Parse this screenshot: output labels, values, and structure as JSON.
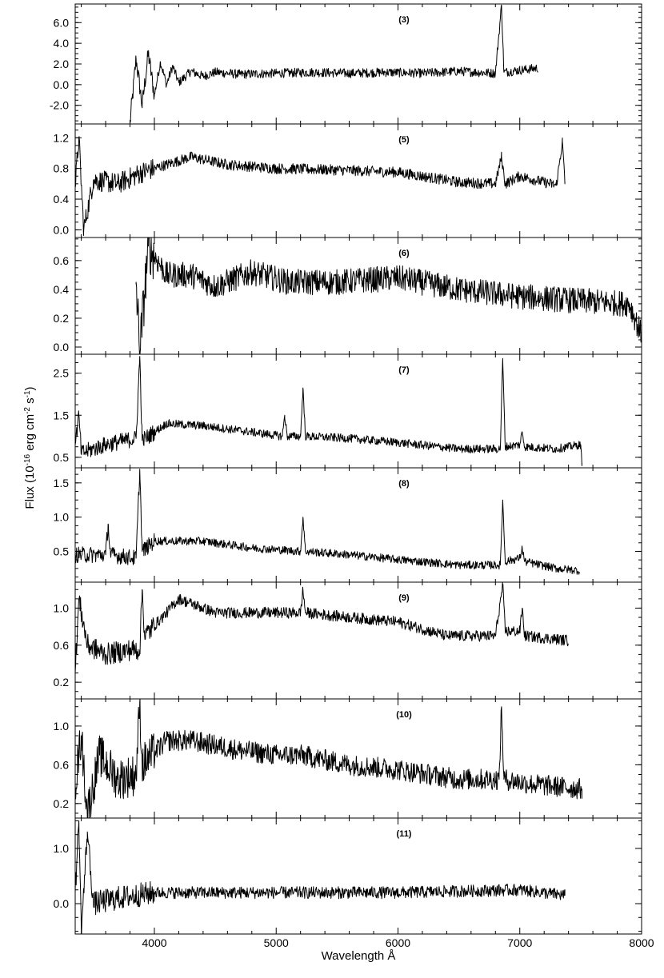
{
  "chart_data": {
    "type": "line",
    "xlabel": "Wavelength Å",
    "ylabel": "Flux (10^-16 erg cm^-2 s^-1)",
    "ylabel_parts": {
      "prefix": "Flux (10",
      "exp1": "-16",
      "mid": " erg cm",
      "exp2": "-2",
      "mid2": " s",
      "exp3": "-1",
      "suffix": ")"
    },
    "xlim": [
      3350,
      8000
    ],
    "x_ticks": [
      4000,
      5000,
      6000,
      7000,
      8000
    ],
    "x_tick_labels": [
      "4000",
      "5000",
      "6000",
      "7000",
      "8000"
    ],
    "grid": false,
    "panels": [
      {
        "label": "(3)",
        "ylim": [
          -3.8,
          7.8
        ],
        "y_ticks": [
          -2.0,
          0.0,
          2.0,
          4.0,
          6.0
        ],
        "y_tick_labels": [
          "-2.0",
          "0.0",
          "2.0",
          "4.0",
          "6.0"
        ],
        "range": [
          3800,
          7150
        ],
        "points": [
          [
            3800,
            -3.7
          ],
          [
            3850,
            2.5
          ],
          [
            3900,
            -2.0
          ],
          [
            3950,
            3.0
          ],
          [
            4000,
            -1.0
          ],
          [
            4050,
            2.2
          ],
          [
            4100,
            0.0
          ],
          [
            4150,
            1.8
          ],
          [
            4200,
            0.2
          ],
          [
            4300,
            1.3
          ],
          [
            4400,
            0.8
          ],
          [
            4500,
            1.2
          ],
          [
            4700,
            1.0
          ],
          [
            5000,
            1.1
          ],
          [
            5300,
            1.2
          ],
          [
            5600,
            1.1
          ],
          [
            5900,
            1.2
          ],
          [
            6200,
            1.1
          ],
          [
            6500,
            1.3
          ],
          [
            6800,
            1.1
          ],
          [
            6850,
            7.7
          ],
          [
            6870,
            1.2
          ],
          [
            7000,
            1.4
          ],
          [
            7150,
            1.6
          ]
        ],
        "noise": 0.45
      },
      {
        "label": "(5)",
        "ylim": [
          -0.1,
          1.38
        ],
        "y_ticks": [
          0.0,
          0.4,
          0.8,
          1.2
        ],
        "y_tick_labels": [
          "0.0",
          "0.4",
          "0.8",
          "1.2"
        ],
        "range": [
          3350,
          7370
        ],
        "points": [
          [
            3350,
            0.55
          ],
          [
            3380,
            1.2
          ],
          [
            3420,
            0.0
          ],
          [
            3500,
            0.65
          ],
          [
            3700,
            0.6
          ],
          [
            3900,
            0.75
          ],
          [
            4100,
            0.85
          ],
          [
            4300,
            0.95
          ],
          [
            4600,
            0.85
          ],
          [
            5000,
            0.8
          ],
          [
            5500,
            0.78
          ],
          [
            6000,
            0.75
          ],
          [
            6500,
            0.62
          ],
          [
            6800,
            0.6
          ],
          [
            6850,
            0.95
          ],
          [
            6880,
            0.6
          ],
          [
            7000,
            0.7
          ],
          [
            7300,
            0.58
          ],
          [
            7350,
            1.15
          ],
          [
            7370,
            0.6
          ]
        ],
        "noise": 0.07
      },
      {
        "label": "(6)",
        "ylim": [
          -0.05,
          0.76
        ],
        "y_ticks": [
          0.0,
          0.2,
          0.4,
          0.6
        ],
        "y_tick_labels": [
          "0.0",
          "0.2",
          "0.4",
          "0.6"
        ],
        "range": [
          3850,
          8000
        ],
        "points": [
          [
            3850,
            0.45
          ],
          [
            3880,
            -0.04
          ],
          [
            3950,
            0.7
          ],
          [
            4100,
            0.5
          ],
          [
            4300,
            0.5
          ],
          [
            4500,
            0.42
          ],
          [
            4800,
            0.52
          ],
          [
            5100,
            0.45
          ],
          [
            5500,
            0.45
          ],
          [
            6000,
            0.48
          ],
          [
            6500,
            0.4
          ],
          [
            7000,
            0.35
          ],
          [
            7500,
            0.32
          ],
          [
            7900,
            0.3
          ],
          [
            8000,
            0.08
          ]
        ],
        "noise": 0.09
      },
      {
        "label": "(7)",
        "ylim": [
          0.25,
          2.95
        ],
        "y_ticks": [
          0.5,
          1.5,
          2.5
        ],
        "y_tick_labels": [
          "0.5",
          "1.5",
          "2.5"
        ],
        "range": [
          3350,
          7510
        ],
        "points": [
          [
            3350,
            0.8
          ],
          [
            3380,
            1.5
          ],
          [
            3400,
            0.6
          ],
          [
            3600,
            0.8
          ],
          [
            3850,
            0.95
          ],
          [
            3880,
            2.9
          ],
          [
            3900,
            0.9
          ],
          [
            4100,
            1.3
          ],
          [
            4400,
            1.25
          ],
          [
            4800,
            1.1
          ],
          [
            5050,
            1.0
          ],
          [
            5070,
            1.5
          ],
          [
            5090,
            1.0
          ],
          [
            5200,
            1.0
          ],
          [
            5220,
            2.15
          ],
          [
            5240,
            1.0
          ],
          [
            5600,
            0.95
          ],
          [
            6000,
            0.85
          ],
          [
            6500,
            0.7
          ],
          [
            6840,
            0.7
          ],
          [
            6860,
            2.85
          ],
          [
            6880,
            0.75
          ],
          [
            7000,
            0.8
          ],
          [
            7020,
            1.1
          ],
          [
            7040,
            0.75
          ],
          [
            7300,
            0.7
          ],
          [
            7500,
            0.8
          ],
          [
            7510,
            0.3
          ]
        ],
        "noise": 0.1
      },
      {
        "label": "(8)",
        "ylim": [
          0.05,
          1.72
        ],
        "y_ticks": [
          0.5,
          1.0,
          1.5
        ],
        "y_tick_labels": [
          "0.5",
          "1.0",
          "1.5"
        ],
        "range": [
          3350,
          7490
        ],
        "points": [
          [
            3350,
            0.45
          ],
          [
            3600,
            0.45
          ],
          [
            3620,
            0.9
          ],
          [
            3640,
            0.45
          ],
          [
            3850,
            0.4
          ],
          [
            3880,
            1.7
          ],
          [
            3900,
            0.5
          ],
          [
            4000,
            0.65
          ],
          [
            4400,
            0.65
          ],
          [
            4800,
            0.55
          ],
          [
            5200,
            0.5
          ],
          [
            5220,
            1.0
          ],
          [
            5240,
            0.5
          ],
          [
            5600,
            0.45
          ],
          [
            6000,
            0.38
          ],
          [
            6500,
            0.3
          ],
          [
            6840,
            0.3
          ],
          [
            6860,
            1.25
          ],
          [
            6880,
            0.35
          ],
          [
            7000,
            0.4
          ],
          [
            7020,
            0.55
          ],
          [
            7040,
            0.35
          ],
          [
            7300,
            0.25
          ],
          [
            7490,
            0.22
          ]
        ],
        "noise": 0.06
      },
      {
        "label": "(9)",
        "ylim": [
          0.02,
          1.28
        ],
        "y_ticks": [
          0.2,
          0.6,
          1.0
        ],
        "y_tick_labels": [
          "0.2",
          "0.6",
          "1.0"
        ],
        "range": [
          3350,
          7400
        ],
        "points": [
          [
            3350,
            0.3
          ],
          [
            3380,
            1.1
          ],
          [
            3450,
            0.6
          ],
          [
            3600,
            0.5
          ],
          [
            3800,
            0.55
          ],
          [
            3880,
            0.55
          ],
          [
            3900,
            1.2
          ],
          [
            3920,
            0.7
          ],
          [
            4100,
            0.95
          ],
          [
            4200,
            1.1
          ],
          [
            4500,
            0.95
          ],
          [
            5000,
            0.95
          ],
          [
            5200,
            0.95
          ],
          [
            5220,
            1.2
          ],
          [
            5240,
            0.95
          ],
          [
            5600,
            0.9
          ],
          [
            6000,
            0.85
          ],
          [
            6400,
            0.7
          ],
          [
            6800,
            0.7
          ],
          [
            6860,
            1.25
          ],
          [
            6880,
            0.75
          ],
          [
            7000,
            0.75
          ],
          [
            7020,
            1.0
          ],
          [
            7040,
            0.7
          ],
          [
            7400,
            0.65
          ]
        ],
        "noise": 0.06
      },
      {
        "label": "(10)",
        "ylim": [
          0.05,
          1.28
        ],
        "y_ticks": [
          0.2,
          0.6,
          1.0
        ],
        "y_tick_labels": [
          "0.2",
          "0.6",
          "1.0"
        ],
        "range": [
          3350,
          7510
        ],
        "points": [
          [
            3350,
            0.4
          ],
          [
            3400,
            0.9
          ],
          [
            3450,
            0.1
          ],
          [
            3550,
            0.7
          ],
          [
            3700,
            0.45
          ],
          [
            3850,
            0.5
          ],
          [
            3880,
            1.25
          ],
          [
            3900,
            0.6
          ],
          [
            4100,
            0.85
          ],
          [
            4300,
            0.85
          ],
          [
            4700,
            0.75
          ],
          [
            5000,
            0.7
          ],
          [
            5200,
            0.7
          ],
          [
            5600,
            0.6
          ],
          [
            6000,
            0.55
          ],
          [
            6500,
            0.45
          ],
          [
            6830,
            0.45
          ],
          [
            6850,
            1.2
          ],
          [
            6870,
            0.45
          ],
          [
            7100,
            0.4
          ],
          [
            7510,
            0.35
          ]
        ],
        "noise": 0.11
      },
      {
        "label": "(11)",
        "ylim": [
          -0.55,
          1.55
        ],
        "y_ticks": [
          0.0,
          1.0
        ],
        "y_tick_labels": [
          "0.0",
          "1.0"
        ],
        "range": [
          3350,
          7370
        ],
        "points": [
          [
            3350,
            0.2
          ],
          [
            3380,
            1.5
          ],
          [
            3400,
            -0.5
          ],
          [
            3450,
            1.3
          ],
          [
            3500,
            0.0
          ],
          [
            3700,
            0.1
          ],
          [
            4000,
            0.2
          ],
          [
            5000,
            0.2
          ],
          [
            6000,
            0.2
          ],
          [
            7000,
            0.25
          ],
          [
            7370,
            0.15
          ]
        ],
        "noise": 0.11
      }
    ]
  }
}
